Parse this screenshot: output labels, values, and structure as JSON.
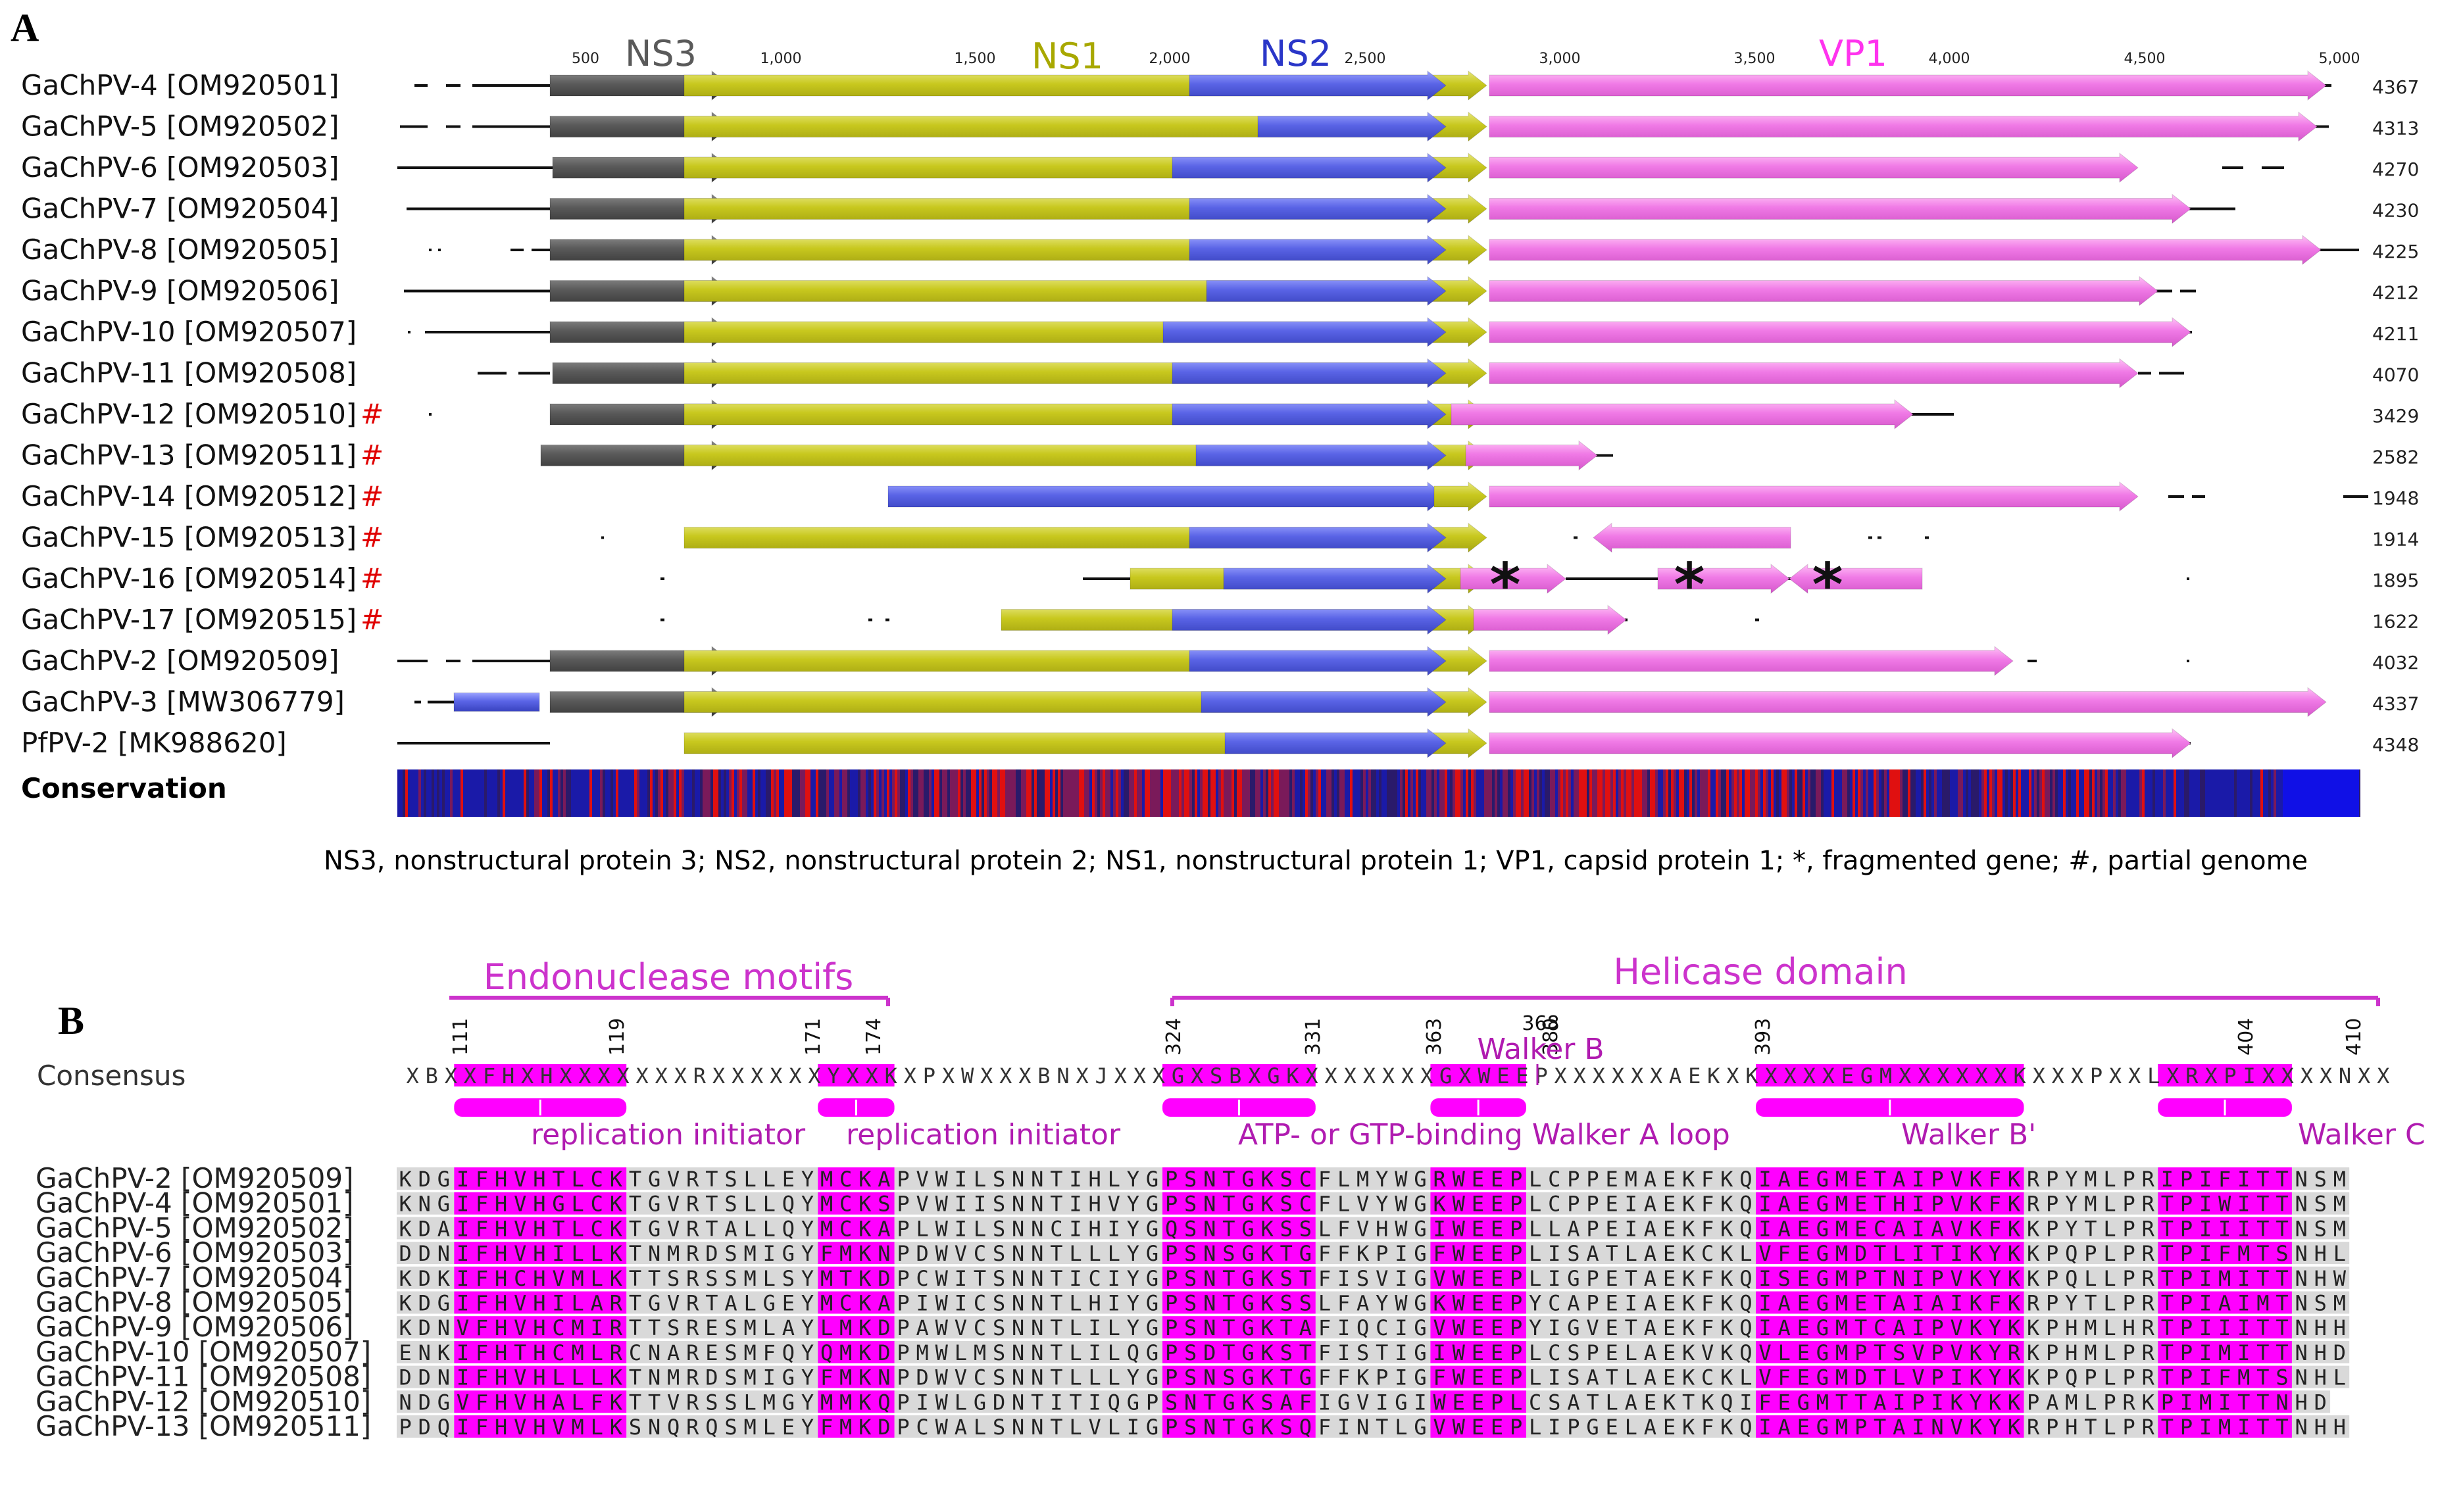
{
  "panel_a": {
    "label": "A",
    "ruler_ticks": [
      "500",
      "1,000",
      "1,500",
      "2,000",
      "2,500",
      "3,000",
      "3,500",
      "4,000",
      "4,500",
      "5,000"
    ],
    "gene_labels": {
      "ns3": "NS3",
      "ns1": "NS1",
      "ns2": "NS2",
      "vp1": "VP1"
    },
    "rows": [
      {
        "name": "GaChPV-4 [OM920501]",
        "partial": "",
        "length": "4367"
      },
      {
        "name": "GaChPV-5 [OM920502]",
        "partial": "",
        "length": "4313"
      },
      {
        "name": "GaChPV-6 [OM920503]",
        "partial": "",
        "length": "4270"
      },
      {
        "name": "GaChPV-7 [OM920504]",
        "partial": "",
        "length": "4230"
      },
      {
        "name": "GaChPV-8 [OM920505]",
        "partial": "",
        "length": "4225"
      },
      {
        "name": "GaChPV-9 [OM920506]",
        "partial": "",
        "length": "4212"
      },
      {
        "name": "GaChPV-10 [OM920507]",
        "partial": "",
        "length": "4211"
      },
      {
        "name": "GaChPV-11 [OM920508]",
        "partial": "",
        "length": "4070"
      },
      {
        "name": "GaChPV-12 [OM920510]",
        "partial": "#",
        "length": "3429"
      },
      {
        "name": "GaChPV-13 [OM920511]",
        "partial": "#",
        "length": "2582"
      },
      {
        "name": "GaChPV-14 [OM920512]",
        "partial": "#",
        "length": "1948"
      },
      {
        "name": "GaChPV-15 [OM920513]",
        "partial": "#",
        "length": "1914"
      },
      {
        "name": "GaChPV-16 [OM920514]",
        "partial": "#",
        "length": "1895"
      },
      {
        "name": "GaChPV-17 [OM920515]",
        "partial": "#",
        "length": "1622"
      },
      {
        "name": "GaChPV-2 [OM920509]",
        "partial": "",
        "length": "4032"
      },
      {
        "name": "GaChPV-3 [MW306779]",
        "partial": "",
        "length": "4337"
      },
      {
        "name": "PfPV-2 [MK988620]",
        "partial": "",
        "length": "4348"
      }
    ],
    "conservation_label": "Conservation",
    "fragment_marker": "*",
    "legend": "NS3, nonstructural protein 3; NS2, nonstructural protein 2; NS1, nonstructural protein 1; VP1, capsid protein 1; *, fragmented gene; #, partial genome",
    "colors": {
      "ns3": "#5a5a5a",
      "ns1": "#c8c81e",
      "ns2": "#5a64e6",
      "vp1": "#f07ae6",
      "partial_mark": "#e00000"
    }
  },
  "panel_b": {
    "label": "B",
    "domains": [
      {
        "label": "Endonuclease motifs"
      },
      {
        "label": "Helicase domain"
      }
    ],
    "position_numbers": [
      "111",
      "119",
      "171",
      "174",
      "324",
      "331",
      "363",
      "368",
      "380",
      "393",
      "404",
      "410"
    ],
    "walker_b_label": "Walker B",
    "consensus_label": "Consensus",
    "consensus_seq": "XBXXFHXHXXXXXXXRXXXXXXYXXKXPXWXXXBNXJXXXGXSBXGKXXXXXXXGXWEEPXXXXXXAEKXKXXXXEGMXXXXXXKXXXPXXLXRXPIXXXXNXX",
    "motif_labels": [
      "replication initiator",
      "replication initiator",
      "ATP- or GTP-binding Walker A loop",
      "Walker B'",
      "Walker C"
    ],
    "sequences": [
      {
        "name": "GaChPV-2 [OM920509]",
        "seq": "KDGIFHVHTLCKTGVRTSLLEYMCKAPVWILSNNTIHLYGPSNTGKSCFLMYWGRWEEPLCPPEMAEKFKQIAEGMETAIPVKFKRPYMLPRIPIFITTNSM"
      },
      {
        "name": "GaChPV-4 [OM920501]",
        "seq": "KNGIFHVHGLCKTGVRTSLLQYMCKSPVWIISNNTIHVYGPSNTGKSCFLVYWGKWEEPLCPPEIAEKFKQIAEGMETHIPVKFKRPYMLPRTPIWITTNSM"
      },
      {
        "name": "GaChPV-5 [OM920502]",
        "seq": "KDAIFHVHTLCKTGVRTALLQYMCKAPLWILSNNCIHIYGQSNTGKSSLFVHWGIWEEPLLAPEIAEKFKQIAEGMECAIAVKFKKPYTLPRTPIIITTNSM"
      },
      {
        "name": "GaChPV-6 [OM920503]",
        "seq": "DDNIFHVHILLKTNMRDSMIGYFMKNPDWVCSNNTLLLYGPSNSGKTGFFKPIGFWEEPLISATLAEKCKLVFEGMDTLITIKYKKPQPLPRTPIFMTSNHL"
      },
      {
        "name": "GaChPV-7 [OM920504]",
        "seq": "KDKIFHCHVMLKTTSRSSMLSYMTKDPCWITSNNTICIYGPSNTGKSTFISVIGVWEEPLIGPETAEKFKQISEGMPTNIPVKYKKPQLLPRTPIMITTNHW"
      },
      {
        "name": "GaChPV-8 [OM920505]",
        "seq": "KDGIFHVHILARTGVRTALGEYMCKAPIWICSNNTLHIYGPSNTGKSSLFAYWGKWEEPYCAPEIAEKFKQIAEGMETAIAIKFKRPYTLPRTPIAIMTNSM"
      },
      {
        "name": "GaChPV-9 [OM920506]",
        "seq": "KDNVFHVHCMIRTTSRESMLAYLMKDPAWVCSNNTLILYGPSNTGKTAFIQCIGVWEEPYIGVETAEKFKQIAEGMTCAIPVKYKKPHMLHRTPIIITTNHH"
      },
      {
        "name": "GaChPV-10 [OM920507]",
        "seq": "ENKIFHTHCMLRCNARESMFQYQMKDPMWLMSNNTLILQGPSDTGKSTFISTIGIWEEPLCSPELAEKVKQVLEGMPTSVPVKYRKPHMLPRTPIMITTNHD"
      },
      {
        "name": "GaChPV-11 [OM920508]",
        "seq": "DDNIFHVHLLLKTNMRDSMIGYFMKNPDWVCSNNTLLLYGPSNSGKTGFFKPIGFWEEPLISATLAEKCKLVFEGMDTLVPIKYKKPQPLPRTPIFMTSNHL"
      },
      {
        "name": "GaChPV-12 [OM920510]",
        "seq": "NDGVFHVHALFKTTVRSSLMGYMMKQPIWLGDNTITIQGPSNTGKSAFIGVIGIWEEPLCSATLAEKTKQIFEGMTTAIPIKYKKPAMLPRKPIMITTNHD"
      },
      {
        "name": "GaChPV-13 [OM920511]",
        "seq": "PDQIFHVHVMLKSNQRQSMLEYFMKDPCWALSNNTLVLIGPSNTGKSQFINTLGVWEEPLIPGELAEKFKQIAEGMPTAINVKYKRPHTLPRTPIMITTNHH"
      }
    ],
    "colors": {
      "highlight": "#ff00ff",
      "shade": "#d9d9d9",
      "bracket": "#cc33cc",
      "label_text": "#b01bb0"
    }
  }
}
